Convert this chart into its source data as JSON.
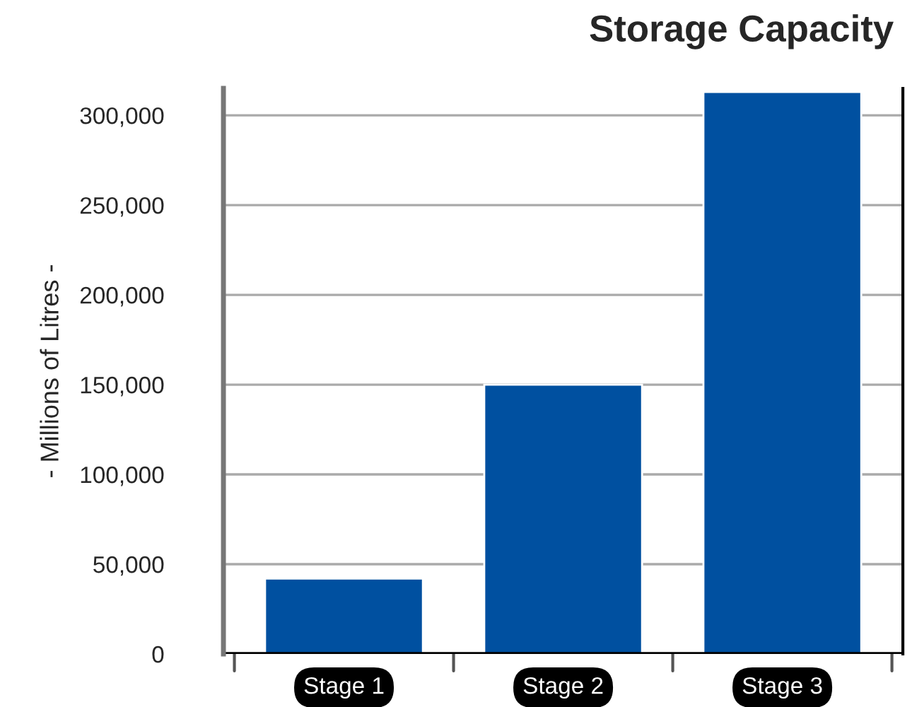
{
  "chart_data": {
    "type": "bar",
    "title": "Storage Capacity",
    "ylabel": "- Millions of Litres -",
    "categories": [
      "Stage 1",
      "Stage 2",
      "Stage 3"
    ],
    "values": [
      42000,
      150000,
      313000
    ],
    "color": "#0050a0",
    "ylim": [
      0,
      315000
    ],
    "yticks": [
      {
        "value": 0,
        "label": "0"
      },
      {
        "value": 50000,
        "label": "50,000"
      },
      {
        "value": 100000,
        "label": "100,000"
      },
      {
        "value": 150000,
        "label": "150,000"
      },
      {
        "value": 200000,
        "label": "200,000"
      },
      {
        "value": 250000,
        "label": "250,000"
      },
      {
        "value": 300000,
        "label": "300,000"
      }
    ],
    "grid": "y"
  }
}
